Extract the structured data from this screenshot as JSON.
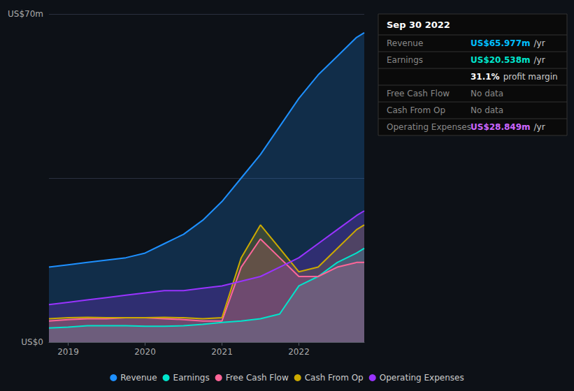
{
  "chart_data": {
    "type": "area",
    "x": [
      2018.75,
      2019.0,
      2019.25,
      2019.5,
      2019.75,
      2020.0,
      2020.25,
      2020.5,
      2020.75,
      2021.0,
      2021.25,
      2021.5,
      2021.75,
      2022.0,
      2022.25,
      2022.5,
      2022.75,
      2022.85
    ],
    "series": [
      {
        "name": "Revenue",
        "color": "#1e90ff",
        "values": [
          16,
          16.5,
          17,
          17.5,
          18,
          19,
          21,
          23,
          26,
          30,
          35,
          40,
          46,
          52,
          57,
          61,
          65,
          66
        ]
      },
      {
        "name": "Earnings",
        "color": "#00e5cc",
        "values": [
          3,
          3.2,
          3.5,
          3.5,
          3.5,
          3.4,
          3.4,
          3.5,
          3.8,
          4.2,
          4.5,
          5.0,
          6.0,
          12,
          14,
          17,
          19,
          20
        ]
      },
      {
        "name": "Free Cash Flow",
        "color": "#ff6699",
        "values": [
          4.5,
          4.8,
          5.0,
          5.0,
          5.2,
          5.2,
          5.0,
          4.8,
          4.5,
          4.5,
          16,
          22,
          18,
          14,
          14,
          16,
          17,
          17
        ]
      },
      {
        "name": "Cash From Op",
        "color": "#ccaa00",
        "values": [
          5,
          5.2,
          5.3,
          5.2,
          5.2,
          5.2,
          5.3,
          5.2,
          5.0,
          5.2,
          18,
          25,
          20,
          15,
          16,
          20,
          24,
          25
        ]
      },
      {
        "name": "Operating Expenses",
        "color": "#9933ff",
        "values": [
          8,
          8.5,
          9,
          9.5,
          10,
          10.5,
          11,
          11,
          11.5,
          12,
          13,
          14,
          16,
          18,
          21,
          24,
          27,
          28
        ]
      }
    ],
    "xlim": [
      2018.75,
      2022.85
    ],
    "xticks": [
      2019,
      2020,
      2021,
      2022
    ],
    "ylim": [
      0,
      70
    ],
    "yticks": [
      0,
      35,
      70
    ],
    "tick_labels": "x",
    "grid": true,
    "legend": "bottom",
    "annotations": [
      {
        "text": "US$70m",
        "y": 70
      },
      {
        "text": "US$0",
        "y": 0
      }
    ],
    "info_box": {
      "title": "Sep 30 2022",
      "rows": [
        {
          "label": "Revenue",
          "value": "US$65.977m",
          "color": "#00bfff",
          "suffix": "/yr"
        },
        {
          "label": "Earnings",
          "value": "US$20.538m",
          "color": "#00e5cc",
          "suffix": "/yr"
        },
        {
          "value": "31.1%",
          "color": "#ffffff",
          "suffix": "profit margin"
        },
        {
          "label": "Free Cash Flow",
          "value": "No data",
          "color": "#888888"
        },
        {
          "label": "Cash From Op",
          "value": "No data",
          "color": "#888888"
        },
        {
          "label": "Operating Expenses",
          "value": "US$28.849m",
          "color": "#cc66ff",
          "suffix": "/yr"
        }
      ]
    }
  }
}
